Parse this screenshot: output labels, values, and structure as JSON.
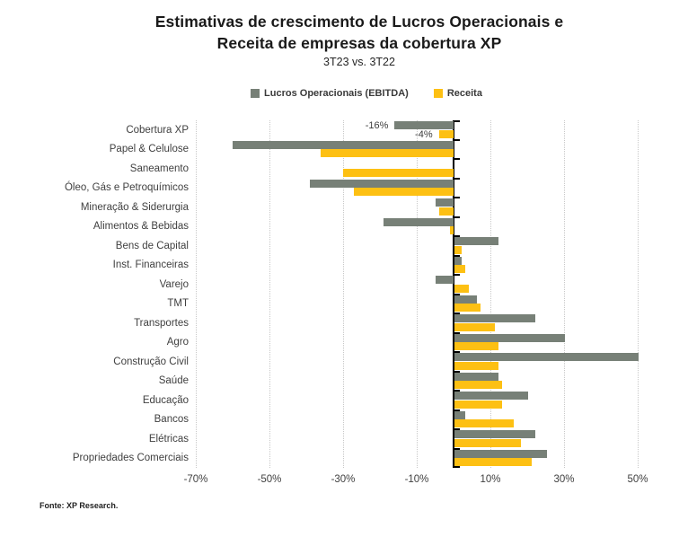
{
  "title": {
    "line1": "Estimativas de crescimento de Lucros Operacionais e",
    "line2": "Receita de empresas da cobertura XP",
    "subtitle": "3T23 vs. 3T22"
  },
  "legend": [
    {
      "label": "Lucros Operacionais (EBITDA)",
      "color": "#778077"
    },
    {
      "label": "Receita",
      "color": "#FDC013"
    }
  ],
  "footer": {
    "source": "Fonte: XP Research."
  },
  "colors": {
    "ebitda": "#778077",
    "receita": "#FDC013",
    "gridline": "#c8c8c8",
    "axis": "#000000"
  },
  "chart_data": {
    "type": "bar",
    "orientation": "horizontal",
    "title": "Estimativas de crescimento de Lucros Operacionais e Receita de empresas da cobertura XP",
    "subtitle": "3T23 vs. 3T22",
    "categories": [
      "Cobertura XP",
      "Papel & Celulose",
      "Saneamento",
      "Óleo, Gás e Petroquímicos",
      "Mineração & Siderurgia",
      "Alimentos & Bebidas",
      "Bens de Capital",
      "Inst. Financeiras",
      "Varejo",
      "TMT",
      "Transportes",
      "Agro",
      "Construção Civil",
      "Saúde",
      "Educação",
      "Bancos",
      "Elétricas",
      "Propriedades Comerciais"
    ],
    "series": [
      {
        "name": "Lucros Operacionais (EBITDA)",
        "color": "#778077",
        "values": [
          -16,
          -60,
          0,
          -39,
          -5,
          -19,
          12,
          2,
          -5,
          6,
          22,
          30,
          50,
          12,
          20,
          3,
          22,
          25
        ]
      },
      {
        "name": "Receita",
        "color": "#FDC013",
        "values": [
          -4,
          -36,
          -30,
          -27,
          -4,
          -1,
          2,
          3,
          4,
          7,
          11,
          12,
          12,
          13,
          13,
          16,
          18,
          21
        ]
      }
    ],
    "data_labels": [
      {
        "row": 0,
        "series": 0,
        "text": "-16%"
      },
      {
        "row": 0,
        "series": 1,
        "text": "-4%"
      }
    ],
    "x_ticks": [
      -70,
      -50,
      -30,
      -10,
      10,
      30,
      50
    ],
    "x_tick_labels": [
      "-70%",
      "-50%",
      "-30%",
      "-10%",
      "10%",
      "30%",
      "50%"
    ],
    "xlim": [
      -70.5,
      55.9
    ],
    "unit": "%",
    "grid": "vertical-dotted",
    "legend_position": "top"
  }
}
